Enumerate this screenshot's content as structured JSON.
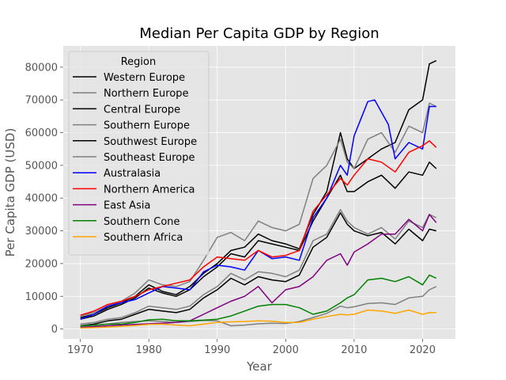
{
  "chart_data": {
    "type": "line",
    "title": "Median Per Capita GDP by Region",
    "xlabel": "Year",
    "ylabel": "Per Capita GDP (USD)",
    "xlim": [
      1967.5,
      2024.8
    ],
    "ylim": [
      -3000,
      86500
    ],
    "x_ticks": [
      1970,
      1980,
      1990,
      2000,
      2010,
      2020
    ],
    "y_ticks": [
      0,
      10000,
      20000,
      30000,
      40000,
      50000,
      60000,
      70000,
      80000
    ],
    "grid": true,
    "legend": {
      "title": "Region",
      "placement": "upper-left"
    },
    "colors": {
      "background": "#e5e5e5",
      "grid": "#ffffff",
      "black": "#000000",
      "gray": "#808080",
      "blue": "#0000ff",
      "red": "#ff0000",
      "purple": "#800080",
      "green": "#008000",
      "orange": "#ffa500"
    },
    "series": [
      {
        "name": "Western Europe",
        "color": "#000000",
        "x": [
          1970,
          1972,
          1974,
          1976,
          1978,
          1980,
          1982,
          1984,
          1986,
          1988,
          1990,
          1992,
          1994,
          1996,
          1998,
          2000,
          2002,
          2004,
          2006,
          2008,
          2009,
          2010,
          2012,
          2014,
          2016,
          2018,
          2020,
          2021,
          2022
        ],
        "y": [
          3500,
          4500,
          6500,
          8000,
          10000,
          13500,
          11500,
          10500,
          13000,
          17000,
          20000,
          24000,
          25000,
          29000,
          27000,
          26000,
          24500,
          35000,
          42000,
          60000,
          52000,
          49000,
          52000,
          55000,
          57000,
          67000,
          70000,
          81000,
          82000
        ]
      },
      {
        "name": "Northern Europe",
        "color": "#808080",
        "x": [
          1970,
          1972,
          1974,
          1976,
          1978,
          1980,
          1982,
          1984,
          1986,
          1988,
          1990,
          1992,
          1994,
          1996,
          1998,
          2000,
          2002,
          2004,
          2006,
          2008,
          2009,
          2010,
          2012,
          2014,
          2016,
          2018,
          2020,
          2021,
          2022
        ],
        "y": [
          4000,
          5000,
          7000,
          8500,
          11000,
          15000,
          13500,
          13000,
          14500,
          21000,
          28000,
          29500,
          27000,
          33000,
          31000,
          30000,
          32000,
          46000,
          50000,
          58000,
          51000,
          49000,
          58000,
          60000,
          54000,
          62000,
          60000,
          69000,
          68000
        ]
      },
      {
        "name": "Central Europe",
        "color": "#000000",
        "x": [
          1970,
          1972,
          1974,
          1976,
          1978,
          1980,
          1982,
          1984,
          1986,
          1988,
          1990,
          1992,
          1994,
          1996,
          1998,
          2000,
          2002,
          2004,
          2006,
          2008,
          2009,
          2010,
          2012,
          2014,
          2016,
          2018,
          2020,
          2021,
          2022
        ],
        "y": [
          3000,
          4000,
          6000,
          7500,
          9500,
          12500,
          11000,
          10000,
          12000,
          16000,
          19000,
          23000,
          22000,
          27000,
          26000,
          25000,
          24000,
          33000,
          40000,
          47000,
          42000,
          42000,
          45000,
          47000,
          43000,
          48000,
          47000,
          51000,
          49000
        ]
      },
      {
        "name": "Southern Europe",
        "color": "#808080",
        "x": [
          1970,
          1972,
          1974,
          1976,
          1978,
          1980,
          1982,
          1984,
          1986,
          1988,
          1990,
          1992,
          1994,
          1996,
          1998,
          2000,
          2002,
          2004,
          2006,
          2008,
          2009,
          2010,
          2012,
          2014,
          2016,
          2018,
          2020,
          2021,
          2022
        ],
        "y": [
          1500,
          2000,
          3000,
          3500,
          5000,
          7000,
          6500,
          6000,
          7000,
          10500,
          13000,
          17000,
          15000,
          17500,
          17000,
          16000,
          18000,
          27000,
          29000,
          36500,
          33000,
          31000,
          29000,
          31000,
          27500,
          33000,
          31000,
          35000,
          34000
        ]
      },
      {
        "name": "Southwest Europe",
        "color": "#000000",
        "x": [
          1970,
          1972,
          1974,
          1976,
          1978,
          1980,
          1982,
          1984,
          1986,
          1988,
          1990,
          1992,
          1994,
          1996,
          1998,
          2000,
          2002,
          2004,
          2006,
          2008,
          2009,
          2010,
          2012,
          2014,
          2016,
          2018,
          2020,
          2021,
          2022
        ],
        "y": [
          1000,
          1500,
          2500,
          3000,
          4500,
          6000,
          5500,
          5000,
          6000,
          9500,
          12000,
          15500,
          13500,
          16000,
          15000,
          14500,
          16500,
          25000,
          28000,
          35500,
          32000,
          30000,
          28500,
          29500,
          26000,
          30500,
          27000,
          30500,
          30000
        ]
      },
      {
        "name": "Southeast Europe",
        "color": "#808080",
        "x": [
          1970,
          1972,
          1974,
          1976,
          1978,
          1980,
          1982,
          1984,
          1986,
          1988,
          1990,
          1992,
          1994,
          1996,
          1998,
          2000,
          2002,
          2004,
          2006,
          2008,
          2009,
          2010,
          2012,
          2014,
          2016,
          2018,
          2020,
          2021,
          2022
        ],
        "y": [
          800,
          1000,
          1500,
          2000,
          2300,
          2500,
          2300,
          2000,
          2300,
          2600,
          2500,
          1000,
          1200,
          1600,
          1800,
          1700,
          2300,
          3500,
          4800,
          7000,
          6500,
          6800,
          7800,
          8000,
          7500,
          9500,
          10000,
          12000,
          13000
        ]
      },
      {
        "name": "Australasia",
        "color": "#0000ff",
        "x": [
          1970,
          1972,
          1974,
          1976,
          1978,
          1980,
          1982,
          1984,
          1986,
          1988,
          1990,
          1992,
          1994,
          1996,
          1998,
          2000,
          2002,
          2004,
          2006,
          2008,
          2009,
          2010,
          2012,
          2013,
          2015,
          2016,
          2018,
          2020,
          2021,
          2022
        ],
        "y": [
          3000,
          4500,
          7000,
          8000,
          9000,
          11000,
          13000,
          12500,
          12000,
          17500,
          19500,
          19000,
          18000,
          24000,
          21500,
          22000,
          21000,
          34000,
          40000,
          50000,
          47000,
          59000,
          69500,
          70000,
          62500,
          52000,
          57000,
          55000,
          68000,
          68000
        ]
      },
      {
        "name": "Northern America",
        "color": "#ff0000",
        "x": [
          1970,
          1972,
          1974,
          1976,
          1978,
          1980,
          1982,
          1984,
          1986,
          1988,
          1990,
          1992,
          1994,
          1996,
          1998,
          2000,
          2002,
          2004,
          2006,
          2008,
          2009,
          2010,
          2012,
          2014,
          2016,
          2018,
          2020,
          2021,
          2022
        ],
        "y": [
          4200,
          5500,
          7500,
          8500,
          10000,
          12000,
          13000,
          14000,
          15000,
          19000,
          22000,
          21500,
          21000,
          24000,
          22000,
          22500,
          24000,
          36000,
          41000,
          46000,
          44000,
          47000,
          52000,
          51000,
          48000,
          54000,
          56000,
          57500,
          55500
        ]
      },
      {
        "name": "East Asia",
        "color": "#800080",
        "x": [
          1970,
          1972,
          1974,
          1976,
          1978,
          1980,
          1982,
          1984,
          1986,
          1988,
          1990,
          1992,
          1994,
          1996,
          1998,
          2000,
          2002,
          2004,
          2006,
          2008,
          2009,
          2010,
          2012,
          2014,
          2016,
          2018,
          2020,
          2021,
          2022
        ],
        "y": [
          500,
          700,
          1000,
          1200,
          1400,
          1600,
          1800,
          2000,
          2500,
          4500,
          6500,
          8500,
          10000,
          13000,
          8000,
          12000,
          13000,
          16000,
          21000,
          23000,
          19500,
          23500,
          26000,
          29000,
          29000,
          33500,
          30000,
          35000,
          32500
        ]
      },
      {
        "name": "Southern Cone",
        "color": "#008000",
        "x": [
          1970,
          1972,
          1974,
          1976,
          1978,
          1980,
          1982,
          1984,
          1986,
          1988,
          1990,
          1992,
          1994,
          1996,
          1998,
          2000,
          2002,
          2004,
          2006,
          2008,
          2009,
          2010,
          2012,
          2014,
          2016,
          2018,
          2020,
          2021,
          2022
        ],
        "y": [
          1000,
          1200,
          1500,
          1500,
          2000,
          2800,
          3000,
          2500,
          2500,
          2700,
          3000,
          4000,
          5500,
          7000,
          7500,
          7500,
          6500,
          4500,
          5500,
          8000,
          9500,
          10500,
          15000,
          15500,
          14500,
          16000,
          13500,
          16500,
          15500
        ]
      },
      {
        "name": "Southern Africa",
        "color": "#ffa500",
        "x": [
          1970,
          1972,
          1974,
          1976,
          1978,
          1980,
          1982,
          1984,
          1986,
          1988,
          1990,
          1992,
          1994,
          1996,
          1998,
          2000,
          2002,
          2004,
          2006,
          2008,
          2009,
          2010,
          2012,
          2014,
          2016,
          2018,
          2020,
          2021,
          2022
        ],
        "y": [
          300,
          400,
          600,
          800,
          1100,
          1400,
          1500,
          1200,
          1000,
          1500,
          2000,
          2200,
          2300,
          2500,
          2400,
          2000,
          2000,
          3000,
          3800,
          4500,
          4300,
          4500,
          5800,
          5500,
          4800,
          5800,
          4500,
          5000,
          5000
        ]
      }
    ]
  }
}
